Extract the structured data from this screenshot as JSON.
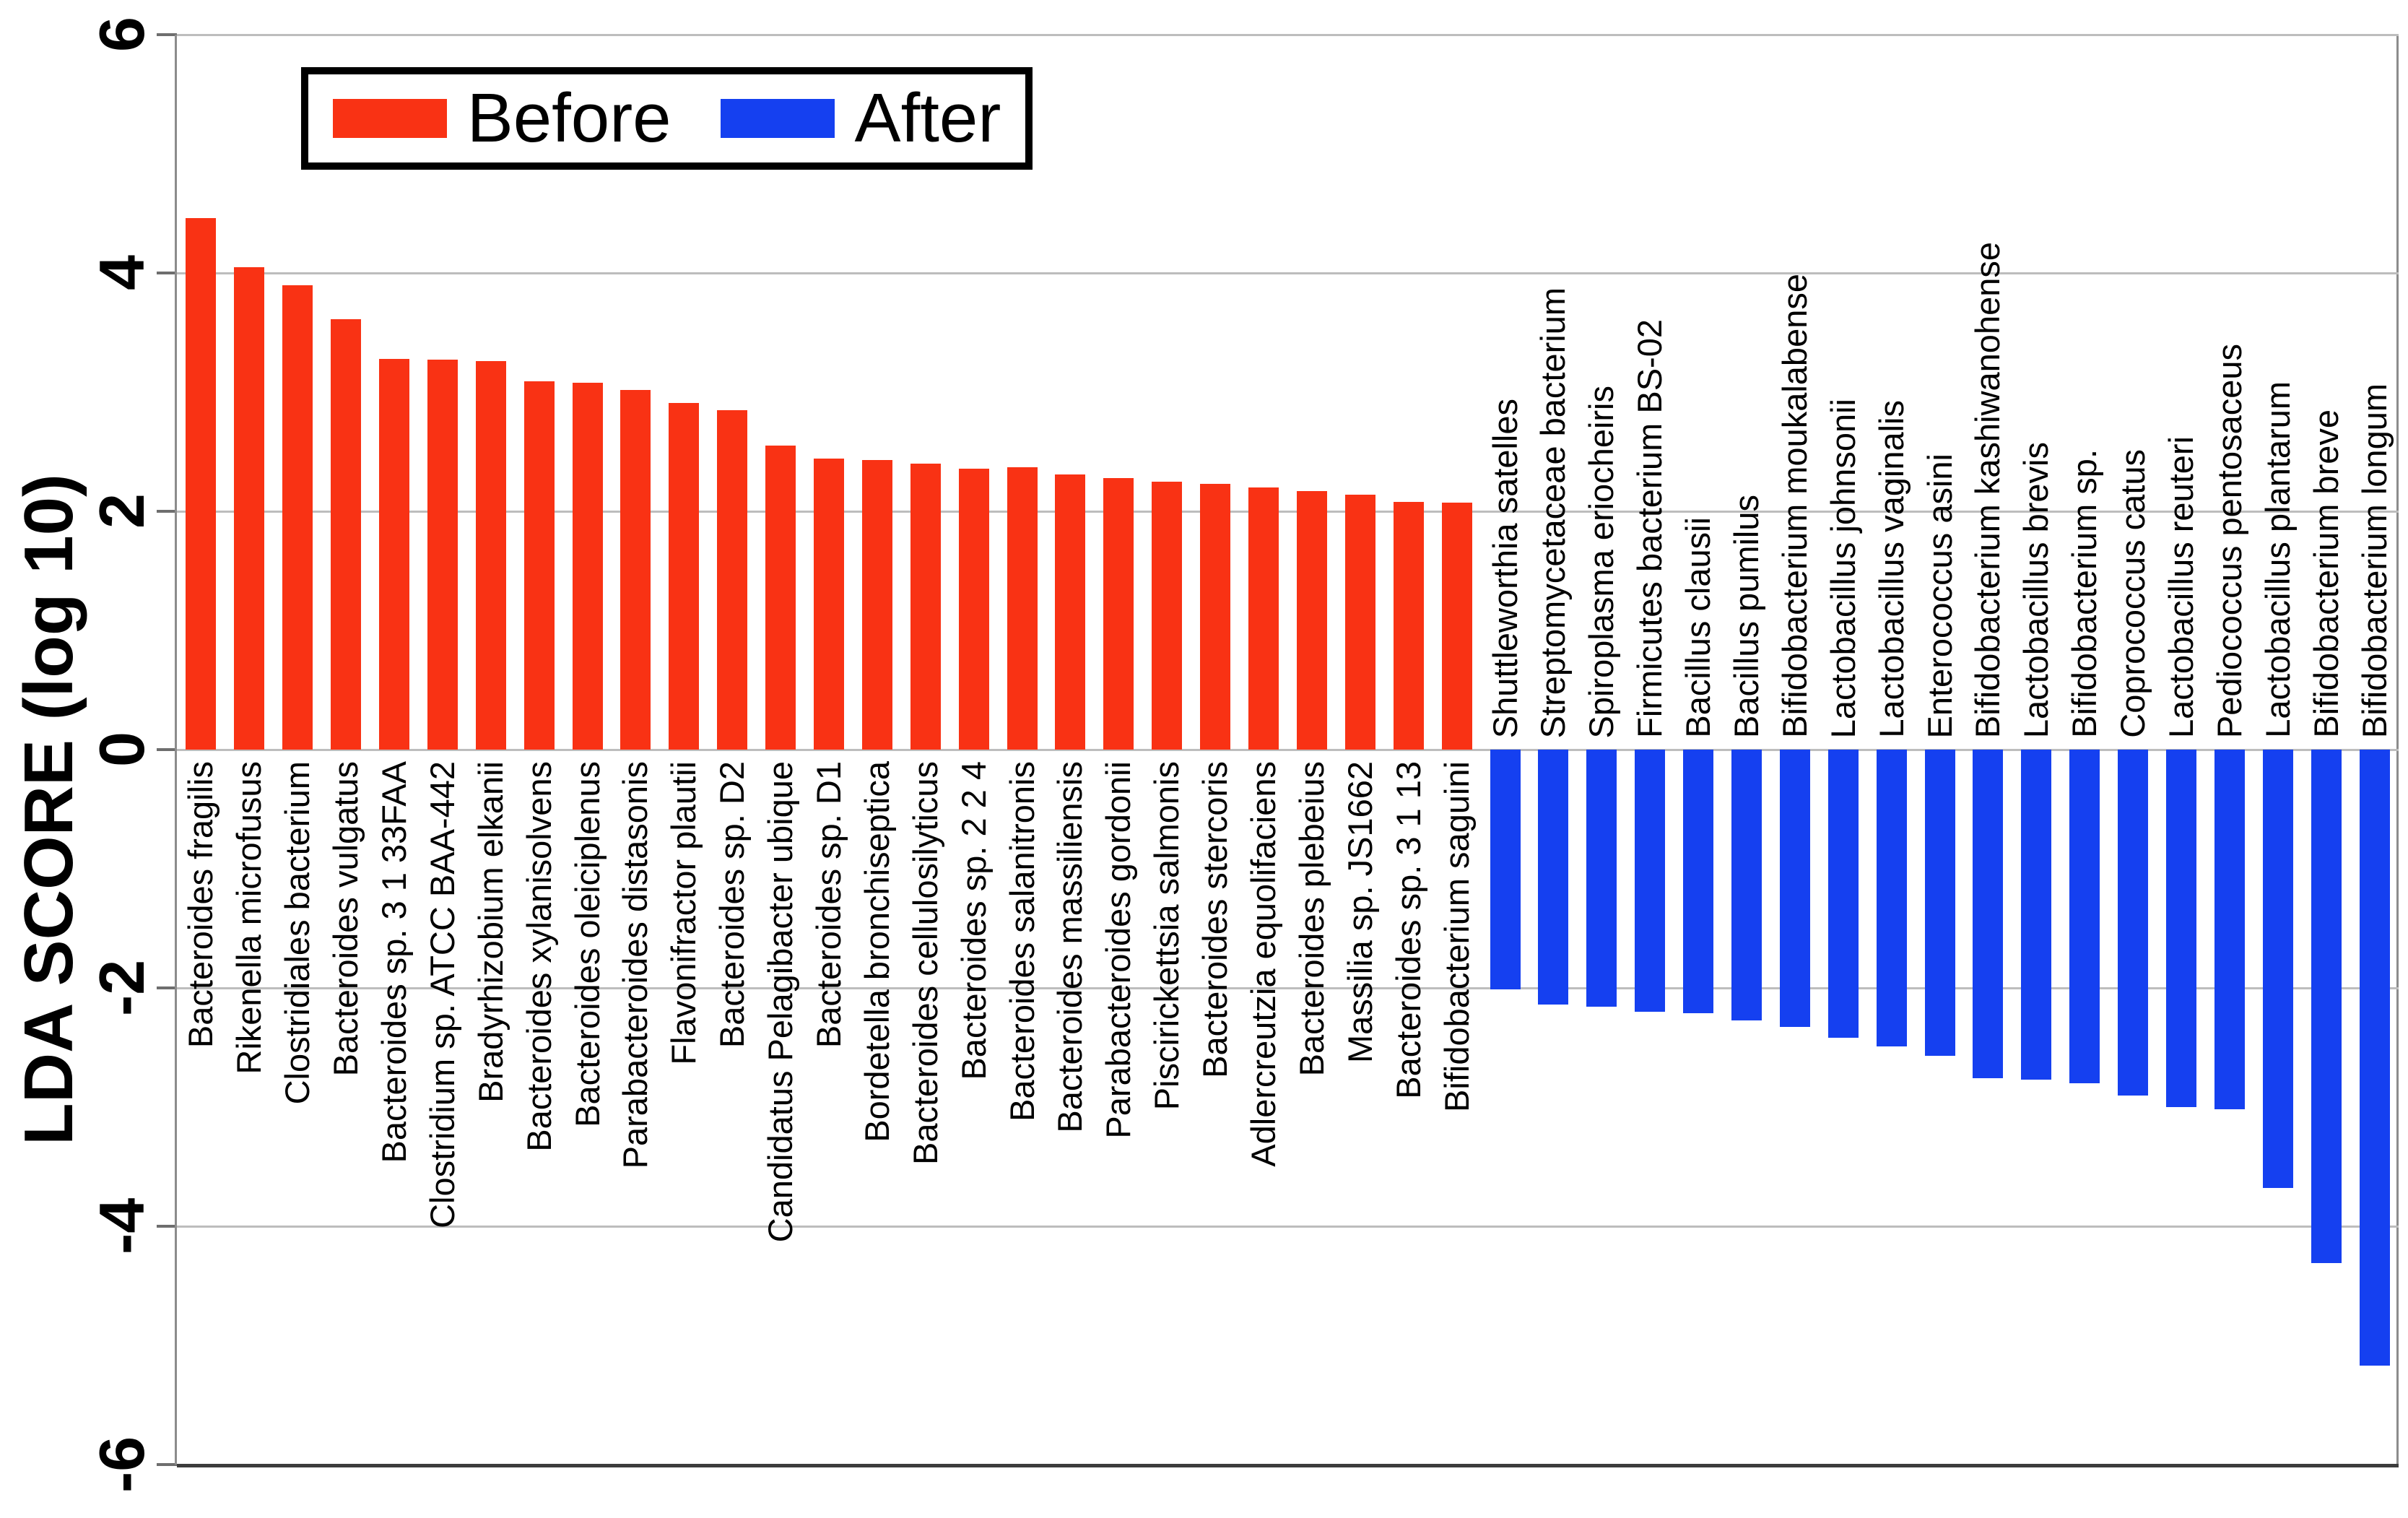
{
  "chart_data": {
    "type": "bar",
    "title": "",
    "xlabel": "",
    "ylabel": "LDA SCORE (log 10)",
    "ylim": [
      -6,
      6
    ],
    "yticks": [
      6,
      4,
      2,
      0,
      -2,
      -4,
      -6
    ],
    "grid": true,
    "legend_position": "top-left-inside",
    "legend": [
      {
        "name": "Before",
        "color": "#f93214"
      },
      {
        "name": "After",
        "color": "#1540f0"
      }
    ],
    "series": [
      {
        "name": "Before",
        "color": "#f93214",
        "label_side": "below-axis",
        "points": [
          {
            "label": "Bacteroides fragilis",
            "value": 4.46
          },
          {
            "label": "Rikenella microfusus",
            "value": 4.05
          },
          {
            "label": "Clostridiales bacterium",
            "value": 3.9
          },
          {
            "label": "Bacteroides vulgatus",
            "value": 3.61
          },
          {
            "label": "Bacteroides sp. 3 1 33FAA",
            "value": 3.28
          },
          {
            "label": "Clostridium sp. ATCC BAA-442",
            "value": 3.27
          },
          {
            "label": "Bradyrhizobium elkanii",
            "value": 3.26
          },
          {
            "label": "Bacteroides xylanisolvens",
            "value": 3.09
          },
          {
            "label": "Bacteroides oleiciplenus",
            "value": 3.08
          },
          {
            "label": "Parabacteroides distasonis",
            "value": 3.02
          },
          {
            "label": "Flavonifractor plautii",
            "value": 2.91
          },
          {
            "label": "Bacteroides sp. D2",
            "value": 2.85
          },
          {
            "label": "Candidatus Pelagibacter ubique",
            "value": 2.55
          },
          {
            "label": "Bacteroides sp. D1",
            "value": 2.44
          },
          {
            "label": "Bordetella bronchiseptica",
            "value": 2.43
          },
          {
            "label": "Bacteroides cellulosilyticus",
            "value": 2.4
          },
          {
            "label": "Bacteroides sp. 2 2 4",
            "value": 2.36
          },
          {
            "label": "Bacteroides salanitronis",
            "value": 2.37
          },
          {
            "label": "Bacteroides massiliensis",
            "value": 2.31
          },
          {
            "label": "Parabacteroides gordonii",
            "value": 2.28
          },
          {
            "label": "Piscirickettsia salmonis",
            "value": 2.25
          },
          {
            "label": "Bacteroides stercoris",
            "value": 2.23
          },
          {
            "label": "Adlercreutzia equolifaciens",
            "value": 2.2
          },
          {
            "label": "Bacteroides plebeius",
            "value": 2.17
          },
          {
            "label": "Massilia sp. JS1662",
            "value": 2.14
          },
          {
            "label": "Bacteroides sp. 3 1 13",
            "value": 2.08
          },
          {
            "label": "Bifidobacterium saguini",
            "value": 2.07
          }
        ]
      },
      {
        "name": "After",
        "color": "#1540f0",
        "label_side": "above-axis",
        "points": [
          {
            "label": "Shuttleworthia satelles",
            "value": -2.01
          },
          {
            "label": "Streptomycetaceae bacterium",
            "value": -2.14
          },
          {
            "label": "Spiroplasma eriocheiris",
            "value": -2.16
          },
          {
            "label": "Firmicutes bacterium BS-02",
            "value": -2.2
          },
          {
            "label": "Bacillus clausii",
            "value": -2.21
          },
          {
            "label": "Bacillus pumilus",
            "value": -2.27
          },
          {
            "label": "Bifidobacterium moukalabense",
            "value": -2.33
          },
          {
            "label": "Lactobacillus johnsonii",
            "value": -2.42
          },
          {
            "label": "Lactobacillus vaginalis",
            "value": -2.49
          },
          {
            "label": "Enterococcus asini",
            "value": -2.57
          },
          {
            "label": "Bifidobacterium kashiwanohense",
            "value": -2.76
          },
          {
            "label": "Lactobacillus brevis",
            "value": -2.77
          },
          {
            "label": "Bifidobacterium sp.",
            "value": -2.8
          },
          {
            "label": "Coprococcus catus",
            "value": -2.9
          },
          {
            "label": "Lactobacillus reuteri",
            "value": -3.0
          },
          {
            "label": "Pediococcus pentosaceus",
            "value": -3.02
          },
          {
            "label": "Lactobacillus plantarum",
            "value": -3.68
          },
          {
            "label": "Bifidobacterium breve",
            "value": -4.31
          },
          {
            "label": "Bifidobacterium longum",
            "value": -5.17
          }
        ]
      }
    ]
  }
}
